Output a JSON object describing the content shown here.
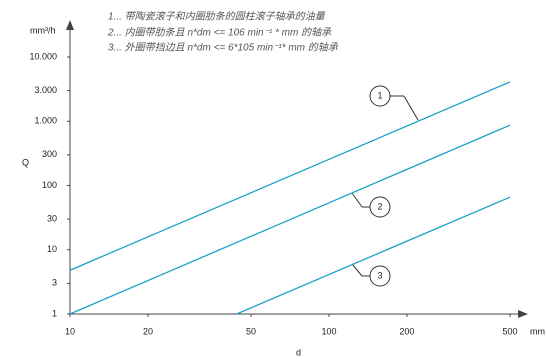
{
  "chart_data": {
    "type": "line",
    "notes": [
      "1... 带陶瓷滚子和内圈肋条的圆柱滚子轴承的油量",
      "2... 内圈带肋条且 n*dm <= 106 min⁻¹ * mm 的轴承",
      "3... 外圈带挡边且 n*dm <= 6*105 min⁻¹* mm 的轴承"
    ],
    "xlabel": "d",
    "xunit": "mm",
    "ylabel": "Q",
    "yunit": "mm³/h",
    "xscale": "log",
    "yscale": "log",
    "xlim": [
      10,
      500
    ],
    "xticks": [
      10,
      20,
      50,
      100,
      200,
      500
    ],
    "ylim": [
      1,
      10000
    ],
    "yticks": [
      1,
      3,
      10,
      30,
      100,
      300,
      {
        "value": 1000,
        "label": "1.000"
      },
      {
        "value": 3000,
        "label": "3.000"
      },
      {
        "value": 10000,
        "label": "10.000"
      }
    ],
    "series": [
      {
        "name": "1",
        "color": "#1ba1c9",
        "x": [
          10,
          500
        ],
        "values": [
          4.8,
          4100
        ]
      },
      {
        "name": "2",
        "color": "#1ba1c9",
        "x": [
          10,
          500
        ],
        "values": [
          1,
          870
        ]
      },
      {
        "name": "3",
        "color": "#1ba1c9",
        "x": [
          44,
          500
        ],
        "values": [
          1,
          66
        ]
      }
    ]
  }
}
